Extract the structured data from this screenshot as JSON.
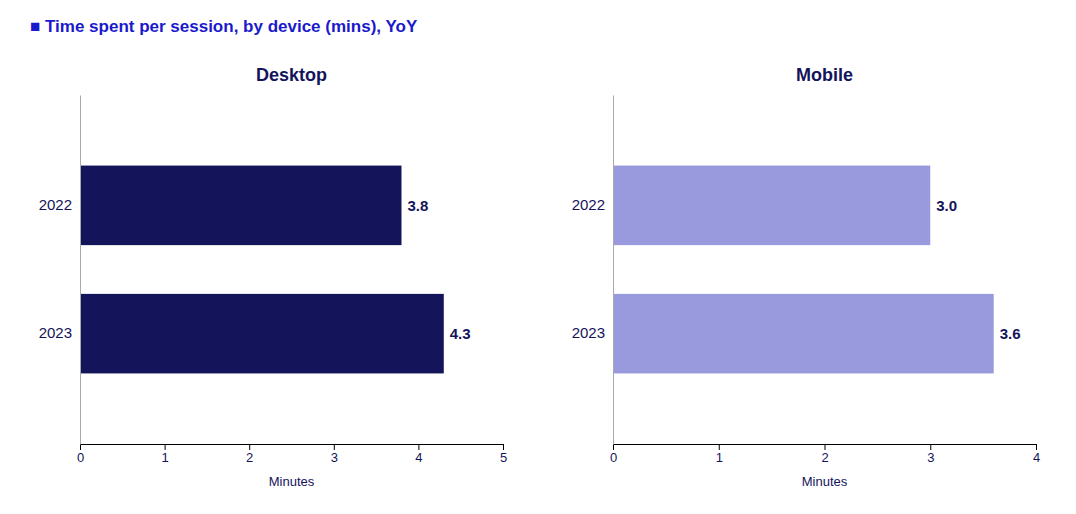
{
  "title": "■ Time spent per session, by device (mins), YoY",
  "chart_data": [
    {
      "type": "bar",
      "orientation": "horizontal",
      "title": "Desktop",
      "categories": [
        "2022",
        "2023"
      ],
      "values": [
        3.8,
        4.3
      ],
      "color": "#14145a",
      "xlabel": "Minutes",
      "xlim": [
        0,
        5
      ],
      "xticks": [
        0,
        1,
        2,
        3,
        4,
        5
      ],
      "data_labels": true,
      "grid": false
    },
    {
      "type": "bar",
      "orientation": "horizontal",
      "title": "Mobile",
      "categories": [
        "2022",
        "2023"
      ],
      "values": [
        3.0,
        3.6
      ],
      "value_labels": [
        "3.0",
        "3.6"
      ],
      "color": "#9999dd",
      "xlabel": "Minutes",
      "xlim": [
        0,
        4
      ],
      "xticks": [
        0,
        1,
        2,
        3,
        4
      ],
      "data_labels": true,
      "grid": false
    }
  ]
}
